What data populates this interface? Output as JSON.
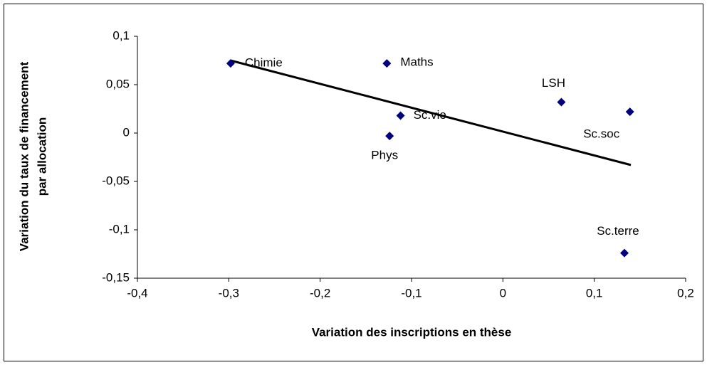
{
  "chart_data": {
    "type": "scatter",
    "xlabel": "Variation des inscriptions en thèse",
    "ylabel": [
      "Variation du taux de financement",
      "par allocation"
    ],
    "labels": [
      "Chimie",
      "Maths",
      "Sc.vie",
      "Phys",
      "LSH",
      "Sc.soc",
      "Sc.terre"
    ],
    "x": [
      -0.298,
      -0.127,
      -0.112,
      -0.124,
      0.064,
      0.139,
      0.133
    ],
    "y": [
      0.072,
      0.072,
      0.018,
      -0.003,
      0.032,
      0.022,
      -0.124
    ],
    "color": "#000080",
    "trendline": {
      "x": [
        -0.298,
        0.14
      ],
      "y": [
        0.075,
        -0.033
      ],
      "color": "#000000"
    },
    "xlim": [
      -0.4,
      0.2
    ],
    "xticks": [
      {
        "value": -0.4,
        "label": "-0,4"
      },
      {
        "value": -0.3,
        "label": "-0,3"
      },
      {
        "value": -0.2,
        "label": "-0,2"
      },
      {
        "value": -0.1,
        "label": "-0,1"
      },
      0,
      {
        "value": 0.1,
        "label": "0,1"
      },
      {
        "value": 0.2,
        "label": "0,2"
      }
    ],
    "ylim": [
      -0.15,
      0.1
    ],
    "yticks": [
      {
        "value": -0.15,
        "label": "-0,15"
      },
      {
        "value": -0.1,
        "label": "-0,1"
      },
      {
        "value": -0.05,
        "label": "-0,05"
      },
      0,
      {
        "value": 0.05,
        "label": "0,05"
      },
      {
        "value": 0.1,
        "label": "0,1"
      }
    ],
    "grid": false
  }
}
